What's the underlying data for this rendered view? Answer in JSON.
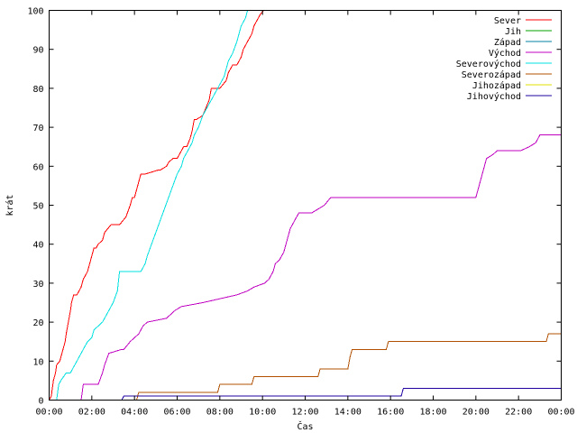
{
  "chart_data": {
    "type": "line",
    "title": "",
    "xlabel": "Čas",
    "ylabel": "krát",
    "xlim": [
      0,
      24
    ],
    "ylim": [
      0,
      100
    ],
    "grid": false,
    "legend_position": "top-right",
    "x_ticks": [
      0,
      2,
      4,
      6,
      8,
      10,
      12,
      14,
      16,
      18,
      20,
      22,
      24
    ],
    "x_tick_labels": [
      "00:00",
      "02:00",
      "04:00",
      "06:00",
      "08:00",
      "10:00",
      "12:00",
      "14:00",
      "16:00",
      "18:00",
      "20:00",
      "22:00",
      "00:00"
    ],
    "y_ticks": [
      0,
      10,
      20,
      30,
      40,
      50,
      60,
      70,
      80,
      90,
      100
    ],
    "y_tick_labels": [
      "0",
      "10",
      "20",
      "30",
      "40",
      "50",
      "60",
      "70",
      "80",
      "90",
      "100"
    ],
    "series": [
      {
        "name": "Sever",
        "color": "#ff0000",
        "x": [
          0,
          0.1,
          0.15,
          0.2,
          0.3,
          0.35,
          0.5,
          0.6,
          0.75,
          0.8,
          0.9,
          1.0,
          1.05,
          1.15,
          1.3,
          1.5,
          1.6,
          1.8,
          1.9,
          2.0,
          2.1,
          2.2,
          2.3,
          2.5,
          2.6,
          2.9,
          3.0,
          3.1,
          3.2,
          3.3,
          3.6,
          3.8,
          3.9,
          4.0,
          4.1,
          4.2,
          4.25,
          4.3,
          4.4,
          4.5,
          5.1,
          5.2,
          5.5,
          5.6,
          5.8,
          6.0,
          6.1,
          6.3,
          6.45,
          6.6,
          6.7,
          6.8,
          6.9,
          7.2,
          7.35,
          7.5,
          7.6,
          7.7,
          7.8,
          8.0,
          8.3,
          8.4,
          8.5,
          8.6,
          8.8,
          9.0,
          9.1,
          9.3,
          9.4,
          9.5,
          9.6,
          9.7,
          9.8,
          9.9,
          10.05
        ],
        "y": [
          0,
          1,
          3,
          5,
          7,
          9,
          10,
          12,
          15,
          17,
          20,
          23,
          25,
          27,
          27,
          29,
          31,
          33,
          35,
          37,
          39,
          39,
          40,
          41,
          43,
          45,
          45,
          45,
          45,
          45,
          47,
          50,
          52,
          52,
          54,
          56,
          57,
          58,
          58,
          58,
          59,
          59,
          60,
          61,
          62,
          62,
          63,
          65,
          65,
          67,
          69,
          72,
          72,
          73,
          75,
          77,
          80,
          80,
          80,
          80,
          82,
          84,
          85,
          86,
          86,
          88,
          90,
          92,
          93,
          94,
          96,
          97,
          98,
          99,
          100
        ]
      },
      {
        "name": "Jih",
        "color": "#00a000",
        "x": [],
        "y": []
      },
      {
        "name": "Západ",
        "color": "#0080a0",
        "x": [],
        "y": []
      },
      {
        "name": "Východ",
        "color": "#c000c0",
        "x": [
          0,
          1.5,
          1.6,
          2.3,
          2.5,
          2.6,
          2.8,
          3.4,
          3.5,
          3.8,
          4.0,
          4.2,
          4.4,
          4.6,
          5.5,
          5.7,
          5.9,
          6.2,
          7.2,
          8.8,
          9.3,
          9.6,
          10.1,
          10.3,
          10.5,
          10.6,
          10.8,
          11.0,
          11.1,
          11.2,
          11.3,
          11.5,
          11.7,
          11.9,
          12.1,
          12.3,
          12.6,
          12.9,
          13.2,
          13.4,
          20.0,
          20.1,
          20.2,
          20.3,
          20.4,
          20.5,
          20.8,
          21.0,
          22.0,
          22.1,
          22.5,
          22.8,
          23.0,
          24.0
        ],
        "y": [
          0,
          0,
          4,
          4,
          7,
          9,
          12,
          13,
          13,
          15,
          16,
          17,
          19,
          20,
          21,
          22,
          23,
          24,
          25,
          27,
          28,
          29,
          30,
          31,
          33,
          35,
          36,
          38,
          40,
          42,
          44,
          46,
          48,
          48,
          48,
          48,
          49,
          50,
          52,
          52,
          52,
          54,
          56,
          58,
          60,
          62,
          63,
          64,
          64,
          64,
          65,
          66,
          68,
          68
        ]
      },
      {
        "name": "Severovýchod",
        "color": "#00e0e0",
        "x": [
          0,
          0.35,
          0.45,
          0.55,
          0.8,
          1.0,
          1.2,
          1.4,
          1.5,
          1.7,
          1.8,
          2.0,
          2.1,
          2.5,
          2.7,
          2.8,
          3.0,
          3.2,
          3.3,
          4.3,
          4.5,
          4.6,
          4.8,
          5.0,
          5.2,
          5.4,
          5.6,
          5.8,
          6.0,
          6.2,
          6.3,
          6.5,
          6.7,
          6.8,
          7.0,
          7.2,
          7.4,
          7.6,
          7.8,
          8.0,
          8.2,
          8.3,
          8.4,
          8.6,
          8.8,
          8.9,
          9.0,
          9.1,
          9.2,
          9.3
        ],
        "y": [
          0,
          0,
          4,
          5,
          7,
          7,
          9,
          11,
          12,
          14,
          15,
          16,
          18,
          20,
          22,
          23,
          25,
          28,
          33,
          33,
          35,
          37,
          40,
          43,
          46,
          49,
          52,
          55,
          58,
          60,
          62,
          64,
          66,
          68,
          70,
          73,
          75,
          77,
          79,
          81,
          83,
          85,
          87,
          89,
          92,
          94,
          96,
          97,
          98,
          100
        ]
      },
      {
        "name": "Severozápad",
        "color": "#b05000",
        "x": [
          0,
          4.1,
          4.2,
          7.9,
          8.0,
          9.5,
          9.6,
          12.6,
          12.7,
          14.0,
          14.1,
          14.2,
          15.8,
          15.9,
          23.3,
          23.4,
          24.0
        ],
        "y": [
          0,
          0,
          2,
          2,
          4,
          4,
          6,
          6,
          8,
          8,
          11,
          13,
          13,
          15,
          15,
          17,
          17
        ]
      },
      {
        "name": "Jihozápad",
        "color": "#e0e000",
        "x": [],
        "y": []
      },
      {
        "name": "Jihovýchod",
        "color": "#2000a0",
        "x": [
          0,
          3.4,
          3.5,
          16.5,
          16.6,
          24.0
        ],
        "y": [
          0,
          0,
          1,
          1,
          3,
          3
        ]
      }
    ]
  }
}
